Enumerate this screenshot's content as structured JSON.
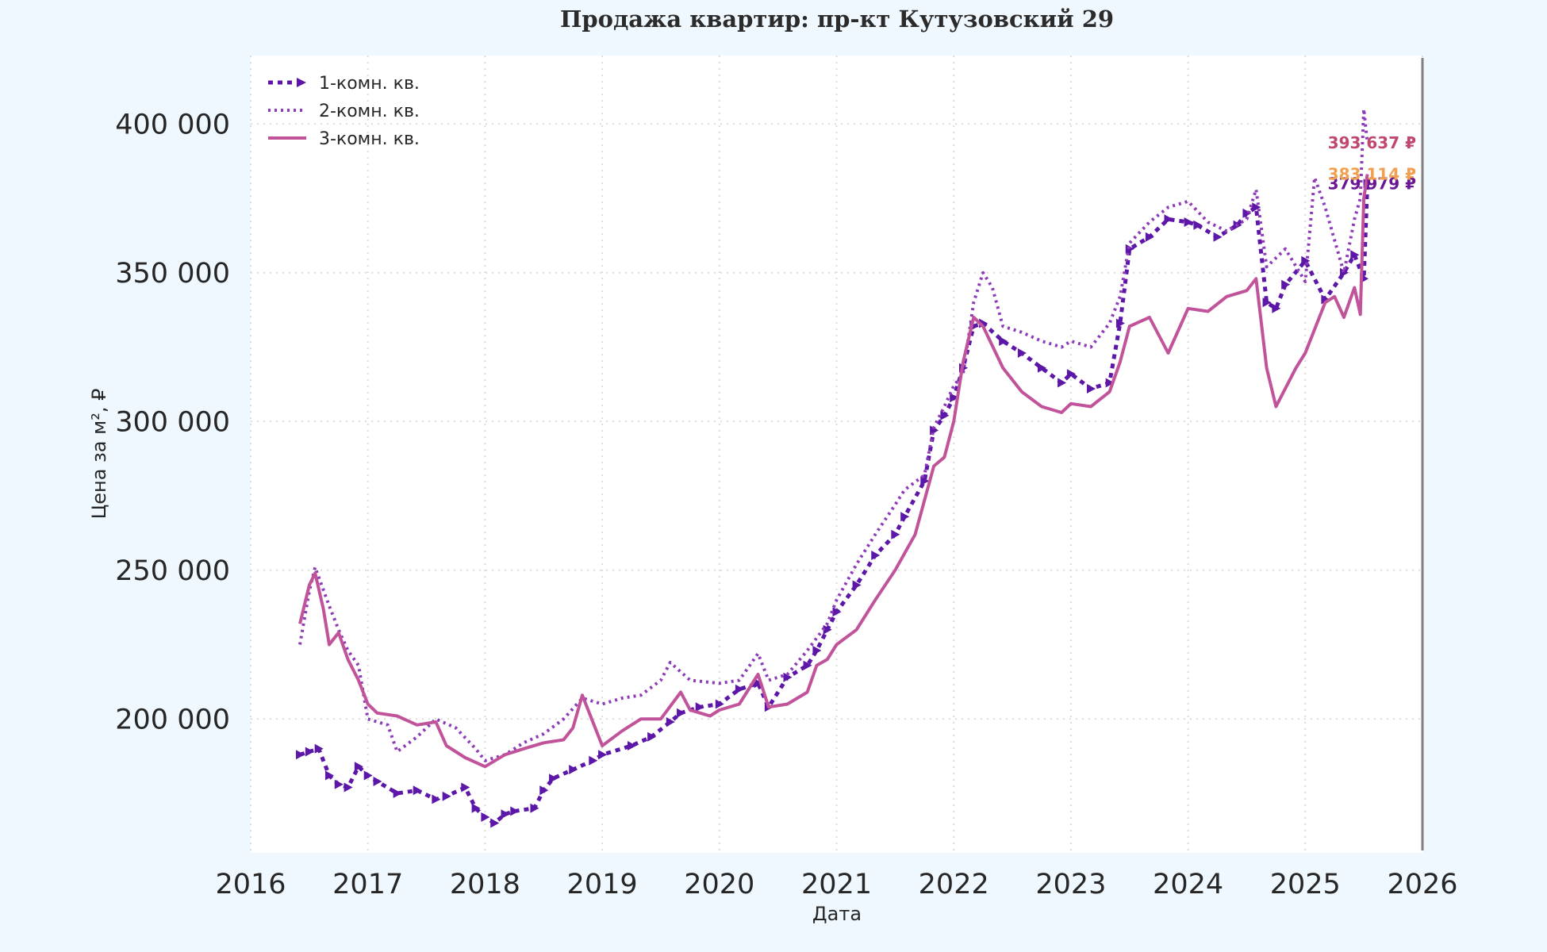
{
  "chart_data": {
    "type": "line",
    "title": "Продажа квартир: пр-кт Кутузовский 29",
    "xlabel": "Дата",
    "ylabel": "Цена за м², ₽",
    "xlim": [
      2016,
      2026
    ],
    "ylim": [
      155000,
      423000
    ],
    "x_ticks": [
      2016,
      2017,
      2018,
      2019,
      2020,
      2021,
      2022,
      2023,
      2024,
      2025,
      2026
    ],
    "x_tick_labels": [
      "2016",
      "2017",
      "2018",
      "2019",
      "2020",
      "2021",
      "2022",
      "2023",
      "2024",
      "2025",
      "2026"
    ],
    "y_ticks": [
      200000,
      250000,
      300000,
      350000,
      400000
    ],
    "y_tick_labels": [
      "200 000",
      "250 000",
      "300 000",
      "350 000",
      "400 000"
    ],
    "grid": true,
    "legend_position": "top-left",
    "series": [
      {
        "name": "1-комн. кв.",
        "color": "#5c16a8",
        "style": "dashed-markers",
        "x": [
          2016.42,
          2016.5,
          2016.58,
          2016.67,
          2016.75,
          2016.83,
          2016.92,
          2017.0,
          2017.08,
          2017.25,
          2017.42,
          2017.58,
          2017.67,
          2017.83,
          2017.92,
          2018.0,
          2018.08,
          2018.17,
          2018.25,
          2018.42,
          2018.5,
          2018.58,
          2018.75,
          2018.92,
          2019.0,
          2019.25,
          2019.42,
          2019.58,
          2019.67,
          2019.83,
          2020.0,
          2020.17,
          2020.33,
          2020.42,
          2020.58,
          2020.75,
          2020.83,
          2020.92,
          2021.0,
          2021.17,
          2021.33,
          2021.5,
          2021.58,
          2021.75,
          2021.83,
          2021.92,
          2022.0,
          2022.08,
          2022.17,
          2022.25,
          2022.42,
          2022.58,
          2022.75,
          2022.92,
          2023.0,
          2023.17,
          2023.33,
          2023.42,
          2023.5,
          2023.67,
          2023.83,
          2024.0,
          2024.08,
          2024.25,
          2024.42,
          2024.5,
          2024.58,
          2024.67,
          2024.75,
          2024.83,
          2025.0,
          2025.17,
          2025.33,
          2025.42,
          2025.5,
          2025.53
        ],
        "values": [
          188000,
          189000,
          190000,
          181000,
          178000,
          177000,
          184000,
          181000,
          179000,
          175000,
          176000,
          173000,
          174000,
          177000,
          170000,
          167000,
          165000,
          168000,
          169000,
          170000,
          176000,
          180000,
          183000,
          186000,
          188000,
          191000,
          194000,
          199000,
          202000,
          204000,
          205000,
          210000,
          212000,
          204000,
          214000,
          218000,
          223000,
          230000,
          236000,
          245000,
          255000,
          262000,
          268000,
          280000,
          297000,
          302000,
          308000,
          318000,
          332000,
          333000,
          327000,
          323000,
          318000,
          313000,
          316000,
          311000,
          313000,
          333000,
          358000,
          362000,
          368000,
          367000,
          366000,
          362000,
          366000,
          370000,
          372000,
          340000,
          338000,
          346000,
          354000,
          341000,
          350000,
          356000,
          348000,
          379979
        ]
      },
      {
        "name": "2-комн. кв.",
        "color": "#8e3bb8",
        "style": "dotted",
        "x": [
          2016.42,
          2016.5,
          2016.55,
          2016.67,
          2016.75,
          2016.83,
          2016.92,
          2017.0,
          2017.17,
          2017.25,
          2017.42,
          2017.58,
          2017.75,
          2017.92,
          2018.0,
          2018.17,
          2018.33,
          2018.5,
          2018.67,
          2018.83,
          2019.0,
          2019.17,
          2019.33,
          2019.5,
          2019.58,
          2019.75,
          2020.0,
          2020.17,
          2020.33,
          2020.42,
          2020.58,
          2020.75,
          2020.92,
          2021.0,
          2021.17,
          2021.33,
          2021.5,
          2021.58,
          2021.75,
          2021.83,
          2021.92,
          2022.0,
          2022.08,
          2022.17,
          2022.25,
          2022.33,
          2022.42,
          2022.58,
          2022.75,
          2022.92,
          2023.0,
          2023.17,
          2023.33,
          2023.42,
          2023.5,
          2023.67,
          2023.83,
          2024.0,
          2024.17,
          2024.33,
          2024.5,
          2024.58,
          2024.67,
          2024.83,
          2025.0,
          2025.08,
          2025.17,
          2025.33,
          2025.42,
          2025.47,
          2025.5,
          2025.53
        ],
        "values": [
          225000,
          243000,
          251000,
          238000,
          230000,
          223000,
          218000,
          200000,
          198000,
          189000,
          194000,
          200000,
          197000,
          190000,
          186000,
          188000,
          192000,
          195000,
          200000,
          207000,
          205000,
          207000,
          208000,
          213000,
          219000,
          213000,
          212000,
          213000,
          222000,
          213000,
          215000,
          223000,
          232000,
          240000,
          252000,
          262000,
          272000,
          277000,
          282000,
          298000,
          305000,
          312000,
          316000,
          340000,
          350000,
          345000,
          332000,
          330000,
          327000,
          325000,
          327000,
          325000,
          333000,
          342000,
          360000,
          367000,
          372000,
          374000,
          367000,
          364000,
          368000,
          378000,
          352000,
          358000,
          347000,
          382000,
          372000,
          350000,
          368000,
          375000,
          405000,
          393637
        ]
      },
      {
        "name": "3-комн. кв.",
        "color": "#c0539a",
        "style": "solid",
        "x": [
          2016.42,
          2016.5,
          2016.55,
          2016.62,
          2016.67,
          2016.75,
          2016.83,
          2016.92,
          2017.0,
          2017.08,
          2017.25,
          2017.42,
          2017.58,
          2017.67,
          2017.83,
          2018.0,
          2018.17,
          2018.33,
          2018.5,
          2018.67,
          2018.75,
          2018.83,
          2019.0,
          2019.17,
          2019.33,
          2019.5,
          2019.67,
          2019.75,
          2019.92,
          2020.0,
          2020.17,
          2020.33,
          2020.42,
          2020.58,
          2020.75,
          2020.83,
          2020.92,
          2021.0,
          2021.17,
          2021.33,
          2021.5,
          2021.67,
          2021.83,
          2021.92,
          2022.0,
          2022.08,
          2022.17,
          2022.25,
          2022.42,
          2022.58,
          2022.75,
          2022.92,
          2023.0,
          2023.17,
          2023.33,
          2023.42,
          2023.5,
          2023.67,
          2023.83,
          2024.0,
          2024.17,
          2024.33,
          2024.5,
          2024.58,
          2024.67,
          2024.75,
          2024.92,
          2025.0,
          2025.17,
          2025.25,
          2025.33,
          2025.42,
          2025.47,
          2025.5,
          2025.53
        ],
        "values": [
          232000,
          245000,
          249000,
          237000,
          225000,
          229000,
          220000,
          213000,
          205000,
          202000,
          201000,
          198000,
          199000,
          191000,
          187000,
          184000,
          188000,
          190000,
          192000,
          193000,
          197000,
          208000,
          191000,
          196000,
          200000,
          200000,
          209000,
          203000,
          201000,
          203000,
          205000,
          215000,
          204000,
          205000,
          209000,
          218000,
          220000,
          225000,
          230000,
          240000,
          250000,
          262000,
          285000,
          288000,
          300000,
          320000,
          335000,
          332000,
          318000,
          310000,
          305000,
          303000,
          306000,
          305000,
          310000,
          320000,
          332000,
          335000,
          323000,
          338000,
          337000,
          342000,
          344000,
          348000,
          318000,
          305000,
          318000,
          323000,
          340000,
          342000,
          335000,
          345000,
          336000,
          375000,
          383114
        ]
      }
    ],
    "end_labels": [
      {
        "series": "2-комн. кв.",
        "text": "393 637 ₽",
        "color": "#c0476e"
      },
      {
        "series": "1-комн. кв.",
        "text": "379 979 ₽",
        "color": "#6a1794"
      },
      {
        "series": "3-комн. кв.",
        "text": "383 114 ₽",
        "color": "#f0a050"
      }
    ]
  }
}
